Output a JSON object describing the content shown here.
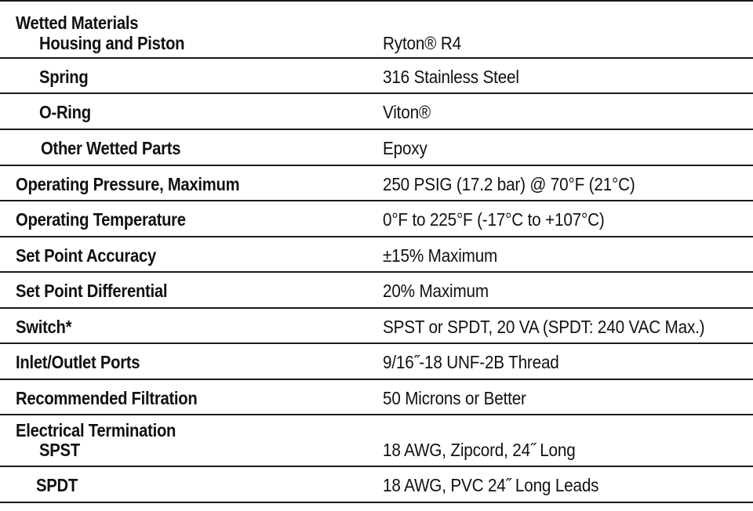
{
  "wetted_materials": {
    "heading": "Wetted Materials",
    "items": [
      {
        "label": "Housing and Piston",
        "value": "Ryton® R4"
      },
      {
        "label": "Spring",
        "value": "316 Stainless Steel"
      },
      {
        "label": "O-Ring",
        "value": "Viton®"
      },
      {
        "label": "Other Wetted Parts",
        "value": "Epoxy"
      }
    ]
  },
  "specs": [
    {
      "label": "Operating Pressure, Maximum",
      "value": "250 PSIG (17.2 bar) @ 70°F (21°C)"
    },
    {
      "label": "Operating Temperature",
      "value": "0°F to 225°F (-17°C to +107°C)"
    },
    {
      "label": "Set Point Accuracy",
      "value": "±15% Maximum"
    },
    {
      "label": "Set Point Differential",
      "value": "20% Maximum"
    },
    {
      "label": "Switch*",
      "value": "SPST or SPDT, 20 VA (SPDT: 240 VAC Max.)"
    },
    {
      "label": "Inlet/Outlet Ports",
      "value": "9/16˝-18 UNF-2B Thread"
    },
    {
      "label": "Recommended Filtration",
      "value": "50 Microns or Better"
    }
  ],
  "electrical_termination": {
    "heading": "Electrical Termination",
    "items": [
      {
        "label": "SPST",
        "value": "18 AWG, Zipcord, 24˝ Long"
      },
      {
        "label": "SPDT",
        "value": "18 AWG, PVC 24˝ Long Leads"
      }
    ]
  }
}
